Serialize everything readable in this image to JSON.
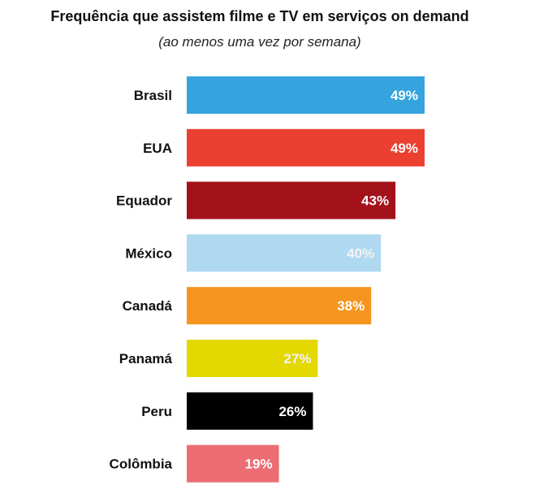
{
  "chart_data": {
    "type": "bar",
    "orientation": "horizontal",
    "title": "Frequência que assistem filme e TV em serviços on demand",
    "subtitle": "(ao menos uma vez por semana)",
    "categories": [
      "Brasil",
      "EUA",
      "Equador",
      "México",
      "Canadá",
      "Panamá",
      "Peru",
      "Colômbia"
    ],
    "values": [
      49,
      49,
      43,
      40,
      38,
      27,
      26,
      19
    ],
    "value_labels": [
      "49%",
      "49%",
      "43%",
      "40%",
      "38%",
      "27%",
      "26%",
      "19%"
    ],
    "colors": [
      "#35A3DE",
      "#EB4031",
      "#A3121B",
      "#AED9F1",
      "#F5951F",
      "#E3D800",
      "#000000",
      "#EC6D74"
    ],
    "xlim": [
      0,
      49
    ],
    "grid": false,
    "legend": "none",
    "xlabel": "",
    "ylabel": ""
  }
}
